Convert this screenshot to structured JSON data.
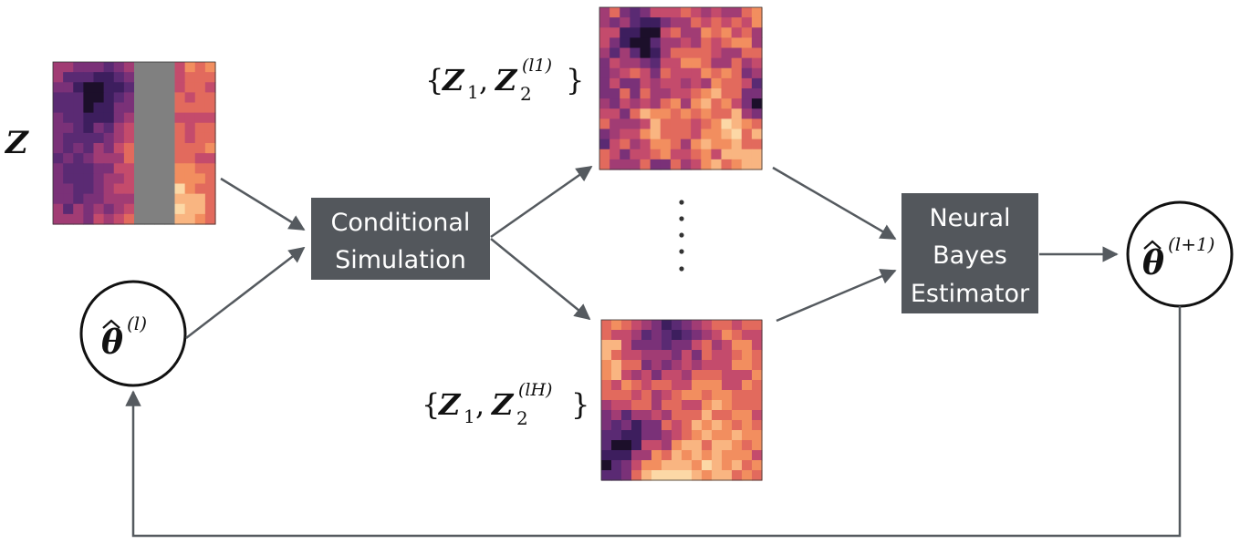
{
  "labels": {
    "z": "Z",
    "set_top": "{Z₁, Z₂⁽ˡ¹⁾}",
    "set_bottom": "{Z₁, Z₂⁽ˡᴴ⁾}",
    "theta_l_sup": "(l)",
    "theta_next_sup": "(l+1)"
  },
  "boxes": {
    "conditional_simulation": [
      "Conditional",
      "Simulation"
    ],
    "neural_bayes_estimator": [
      "Neural",
      "Bayes",
      "Estimator"
    ]
  },
  "colors": {
    "box_fill": "#53575c",
    "arrow": "#555a5f",
    "mask": "#808080",
    "palette": [
      "#1c0f2a",
      "#3d1e5e",
      "#5a2a73",
      "#7a3178",
      "#a13c74",
      "#c44b6c",
      "#e26a5d",
      "#f28e5f",
      "#f9b581",
      "#fcd8a6"
    ]
  }
}
